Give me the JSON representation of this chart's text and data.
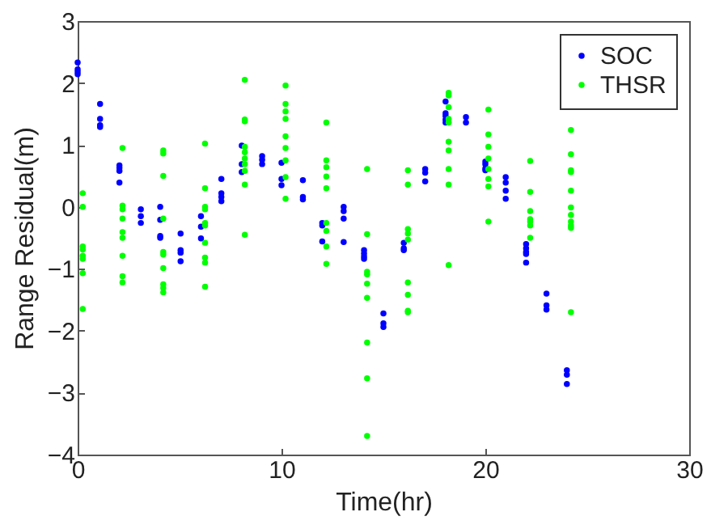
{
  "chart_data": {
    "type": "scatter",
    "xlabel": "Time(hr)",
    "ylabel": "Range Residual(m)",
    "xlim": [
      0,
      30
    ],
    "xticks": [
      0,
      10,
      20,
      30
    ],
    "ylim": [
      -4,
      3
    ],
    "yticks": [
      -4,
      -3,
      -2,
      -1,
      0,
      1,
      2,
      3
    ],
    "grid": false,
    "legend": "top right",
    "marker": "circle",
    "series": [
      {
        "name": "SOC",
        "color": "#0000ff",
        "x": [
          0,
          0,
          0,
          0,
          1.1,
          1.1,
          1.1,
          1.1,
          2.05,
          2.05,
          2.05,
          2.05,
          3.1,
          3.1,
          3.1,
          4.05,
          4.05,
          4.05,
          4.05,
          5.05,
          5.05,
          5.05,
          5.05,
          6.05,
          6.05,
          6.05,
          7.05,
          7.05,
          7.05,
          7.05,
          8.05,
          8.05,
          8.05,
          9.05,
          9.05,
          9.05,
          10,
          10,
          10,
          11.05,
          11.05,
          11.05,
          12,
          12,
          12,
          13.05,
          13.05,
          13.05,
          13.05,
          14.05,
          14.05,
          14.05,
          14.05,
          15,
          15,
          15,
          16,
          16,
          16,
          17.05,
          17.05,
          17.05,
          18.05,
          18.05,
          18.05,
          18.05,
          18.05,
          19.05,
          19.05,
          20,
          20,
          20,
          20,
          21,
          21,
          21,
          21,
          22,
          22,
          22,
          22,
          22,
          23,
          23,
          23,
          24,
          24,
          24
        ],
        "values": [
          2.33,
          2.22,
          2.18,
          2.14,
          1.66,
          1.42,
          1.32,
          1.29,
          0.67,
          0.63,
          0.58,
          0.39,
          -0.04,
          -0.15,
          -0.26,
          0,
          -0.21,
          -0.47,
          -0.5,
          -0.43,
          -0.7,
          -0.74,
          -0.88,
          -0.15,
          -0.32,
          -0.51,
          0.45,
          0.22,
          0.16,
          0.09,
          0.99,
          0.69,
          0.56,
          0.82,
          0.76,
          0.69,
          0.71,
          0.45,
          0.35,
          0.43,
          0.16,
          0.12,
          -0.26,
          -0.3,
          -0.56,
          0,
          -0.07,
          -0.19,
          -0.57,
          -0.7,
          -0.75,
          -0.8,
          -0.84,
          -1.72,
          -1.88,
          -1.94,
          -0.58,
          -0.67,
          -0.7,
          0.61,
          0.55,
          0.41,
          1.7,
          1.51,
          1.47,
          1.41,
          1.36,
          1.45,
          1.36,
          0.73,
          0.69,
          0.62,
          0.59,
          0.48,
          0.39,
          0.26,
          0.13,
          -0.6,
          -0.67,
          -0.73,
          -0.76,
          -0.9,
          -1.4,
          -1.59,
          -1.66,
          -2.64,
          -2.71,
          -2.86
        ]
      },
      {
        "name": "THSR",
        "color": "#00ff00",
        "x": [
          0.25,
          0.25,
          0.25,
          0.25,
          0.25,
          0.25,
          0.25,
          0.25,
          2.2,
          2.2,
          2.2,
          2.2,
          2.2,
          2.2,
          2.2,
          2.2,
          2.2,
          4.2,
          4.2,
          4.2,
          4.2,
          4.2,
          4.2,
          4.2,
          4.2,
          4.2,
          4.2,
          6.25,
          6.25,
          6.25,
          6.25,
          6.25,
          6.25,
          6.25,
          6.25,
          6.25,
          6.25,
          8.2,
          8.2,
          8.2,
          8.2,
          8.2,
          8.2,
          8.2,
          8.2,
          8.2,
          8.2,
          10.2,
          10.2,
          10.2,
          10.2,
          10.2,
          10.2,
          10.2,
          10.2,
          10.2,
          12.2,
          12.2,
          12.2,
          12.2,
          12.2,
          12.2,
          12.2,
          12.2,
          12.2,
          14.2,
          14.2,
          14.2,
          14.2,
          14.2,
          14.2,
          14.2,
          14.2,
          14.2,
          16.2,
          16.2,
          16.2,
          16.2,
          16.2,
          16.2,
          16.2,
          16.2,
          16.2,
          18.2,
          18.2,
          18.2,
          18.2,
          18.2,
          18.2,
          18.2,
          18.2,
          18.2,
          18.2,
          20.15,
          20.15,
          20.15,
          20.15,
          20.15,
          20.15,
          20.15,
          20.15,
          22.2,
          22.2,
          22.2,
          22.2,
          22.2,
          22.2,
          22.2,
          24.2,
          24.2,
          24.2,
          24.2,
          24.2,
          24.2,
          24.2,
          24.2,
          24.2,
          24.2,
          24.2
        ],
        "values": [
          0.22,
          0,
          -0.64,
          -0.69,
          -0.79,
          -0.84,
          -1.07,
          -1.65,
          0.95,
          0.02,
          -0.04,
          -0.19,
          -0.41,
          -0.5,
          -0.79,
          -1.12,
          -1.22,
          0.91,
          0.86,
          0.5,
          -0.19,
          -0.73,
          -0.77,
          -0.99,
          -1.25,
          -1.31,
          -1.38,
          1.02,
          0.3,
          0,
          -0.04,
          -0.26,
          -0.3,
          -0.58,
          -0.82,
          -0.9,
          -1.29,
          2.05,
          1.41,
          1.38,
          0.97,
          0.88,
          0.78,
          0.69,
          0.58,
          0.36,
          -0.45,
          1.96,
          1.66,
          1.54,
          1.42,
          1.14,
          0.95,
          0.75,
          0.48,
          0.13,
          1.36,
          0.75,
          0.64,
          0.49,
          0.3,
          -0.26,
          -0.39,
          -0.64,
          -0.92,
          0.61,
          -0.44,
          -1.05,
          -1.09,
          -1.24,
          -1.47,
          -2.19,
          -2.77,
          -3.7,
          0.59,
          0.36,
          -0.36,
          -0.43,
          -0.53,
          -1.22,
          -1.42,
          -1.68,
          -1.7,
          1.84,
          1.8,
          1.61,
          1.42,
          1.36,
          1.05,
          0.91,
          0.61,
          0.36,
          -0.94,
          1.57,
          1.17,
          0.97,
          0.78,
          0.61,
          0.45,
          0.33,
          -0.24,
          0.74,
          0.24,
          -0.07,
          -0.2,
          -0.24,
          -0.3,
          -0.5,
          1.24,
          0.85,
          0.59,
          0.56,
          0.26,
          -0.01,
          -0.13,
          -0.24,
          -0.3,
          -0.34,
          -1.7
        ]
      }
    ]
  }
}
